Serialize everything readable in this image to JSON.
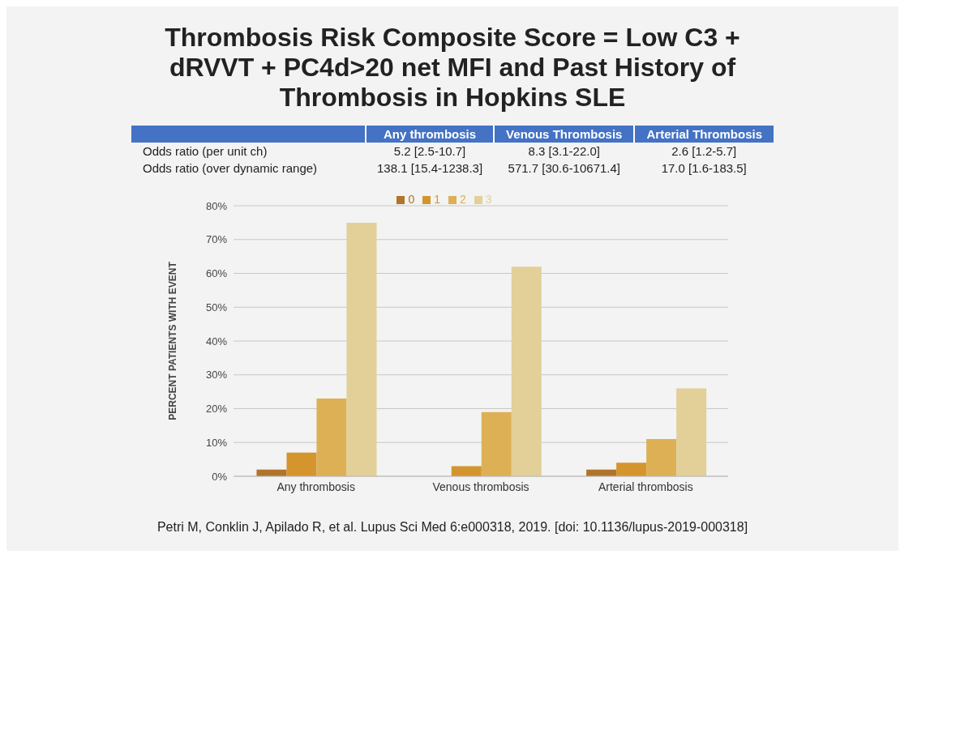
{
  "chart_data": {
    "type": "bar",
    "title": "Thrombosis Risk Composite Score = Low C3 + dRVVT + PC4d>20 net MFI and Past History of Thrombosis in Hopkins SLE",
    "categories": [
      "Any thrombosis",
      "Venous thrombosis",
      "Arterial thrombosis"
    ],
    "series": [
      {
        "name": "0",
        "color": "#b0742a",
        "values": [
          2,
          0,
          2
        ]
      },
      {
        "name": "1",
        "color": "#d4952e",
        "values": [
          7,
          3,
          4
        ]
      },
      {
        "name": "2",
        "color": "#ddb055",
        "values": [
          23,
          19,
          11
        ]
      },
      {
        "name": "3",
        "color": "#e3cf98",
        "values": [
          75,
          62,
          26
        ]
      }
    ],
    "ylabel": "PERCENT PATIENTS WITH EVENT",
    "ylim": [
      0,
      80
    ],
    "yticks": [
      {
        "value": 0,
        "label": "0%"
      },
      {
        "value": 10,
        "label": "10%"
      },
      {
        "value": 20,
        "label": "20%"
      },
      {
        "value": 30,
        "label": "30%"
      },
      {
        "value": 40,
        "label": "40%"
      },
      {
        "value": 50,
        "label": "50%"
      },
      {
        "value": 60,
        "label": "60%"
      },
      {
        "value": 70,
        "label": "70%"
      },
      {
        "value": 80,
        "label": "80%"
      }
    ],
    "grid": "y",
    "legend": "top",
    "annotations": [
      "Any thrombosis",
      "Venous Thrombosis",
      "Arterial Thrombosis",
      "Odds ratio (per unit ch)",
      "5.2 [2.5-10.7]",
      "8.3 [3.1-22.0]",
      "2.6 [1.2-5.7]",
      "Odds ratio (over dynamic range)",
      "138.1 [15.4-1238.3]",
      "571.7 [30.6-10671.4]",
      "17.0 [1.6-183.5]",
      "Petri M, Conklin J, Apilado R, et al. Lupus Sci Med 6:e000318, 2019. [doi: 10.1136/lupus-2019-000318]"
    ]
  }
}
